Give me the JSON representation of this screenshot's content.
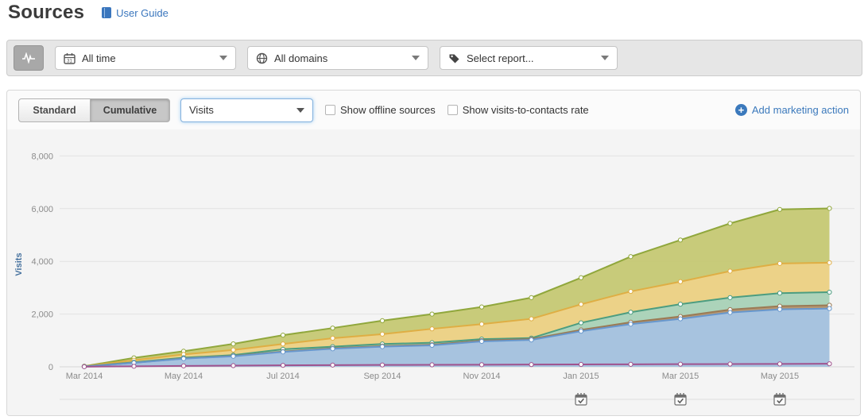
{
  "header": {
    "title": "Sources",
    "user_guide_label": "User Guide"
  },
  "filter_bar": {
    "chart_type_button": {
      "icon": "pulse-icon"
    },
    "dropdowns": [
      {
        "icon": "calendar-icon",
        "label": "All time"
      },
      {
        "icon": "globe-icon",
        "label": "All domains"
      },
      {
        "icon": "tag-icon",
        "label": "Select report..."
      }
    ]
  },
  "toolbar": {
    "view_toggle": {
      "standard_label": "Standard",
      "cumulative_label": "Cumulative",
      "active": "Cumulative"
    },
    "metric_select": {
      "value": "Visits"
    },
    "checkboxes": [
      {
        "label": "Show offline sources",
        "checked": false
      },
      {
        "label": "Show visits-to-contacts rate",
        "checked": false
      }
    ],
    "add_action_label": "Add marketing action"
  },
  "colors": {
    "accent_blue": "#3b79bc",
    "axis_text": "#8b8b8b",
    "y_title": "#45719e"
  },
  "chart_data": {
    "type": "area",
    "stacked": true,
    "mode": "cumulative",
    "title": "",
    "xlabel": "",
    "ylabel": "Visits",
    "ylim": [
      0,
      8000
    ],
    "yticks": [
      0,
      2000,
      4000,
      6000,
      8000
    ],
    "grid": true,
    "legend_position": "none",
    "x": [
      "Mar 2014",
      "Apr 2014",
      "May 2014",
      "Jun 2014",
      "Jul 2014",
      "Aug 2014",
      "Sep 2014",
      "Oct 2014",
      "Nov 2014",
      "Dec 2014",
      "Jan 2015",
      "Feb 2015",
      "Mar 2015",
      "Apr 2015",
      "May 2015",
      "Jun 2015"
    ],
    "x_ticks_shown": [
      "Mar 2014",
      "May 2014",
      "Jul 2014",
      "Sep 2014",
      "Nov 2014",
      "Jan 2015",
      "Mar 2015",
      "May 2015"
    ],
    "series_note": "no legend shown; series identified by color, values are cumulative stacked tops read from chart",
    "series": [
      {
        "name": "blue",
        "fill": "#a6c5e5",
        "stroke": "#6797cd",
        "stacked_top": [
          10,
          150,
          310,
          400,
          565,
          685,
          765,
          815,
          965,
          1020,
          1350,
          1620,
          1820,
          2060,
          2180,
          2210
        ]
      },
      {
        "name": "brown",
        "fill": "#b5936f",
        "stroke": "#9a7a55",
        "stacked_top": [
          12,
          155,
          318,
          410,
          579,
          703,
          787,
          841,
          995,
          1055,
          1400,
          1690,
          1910,
          2170,
          2300,
          2335
        ]
      },
      {
        "name": "teal",
        "fill": "#a9d3bd",
        "stroke": "#4c9d80",
        "stacked_top": [
          15,
          175,
          345,
          445,
          665,
          765,
          865,
          915,
          1050,
          1090,
          1670,
          2070,
          2375,
          2625,
          2795,
          2830
        ]
      },
      {
        "name": "yellow",
        "fill": "#eed289",
        "stroke": "#dfae44",
        "stacked_top": [
          18,
          250,
          470,
          640,
          865,
          1085,
          1240,
          1440,
          1620,
          1820,
          2370,
          2860,
          3230,
          3630,
          3920,
          3950
        ]
      },
      {
        "name": "olive",
        "fill": "#c5c873",
        "stroke": "#90a73c",
        "stacked_top": [
          22,
          340,
          590,
          870,
          1200,
          1470,
          1750,
          2000,
          2270,
          2625,
          3380,
          4180,
          4810,
          5440,
          5970,
          6010
        ]
      }
    ],
    "baseline_series": {
      "name": "purple",
      "stroke": "#a0538e",
      "values": [
        5,
        20,
        35,
        45,
        55,
        65,
        70,
        75,
        80,
        85,
        90,
        95,
        100,
        105,
        110,
        115
      ]
    },
    "marketing_actions": [
      "Jan 2015",
      "Mar 2015",
      "May 2015"
    ]
  }
}
